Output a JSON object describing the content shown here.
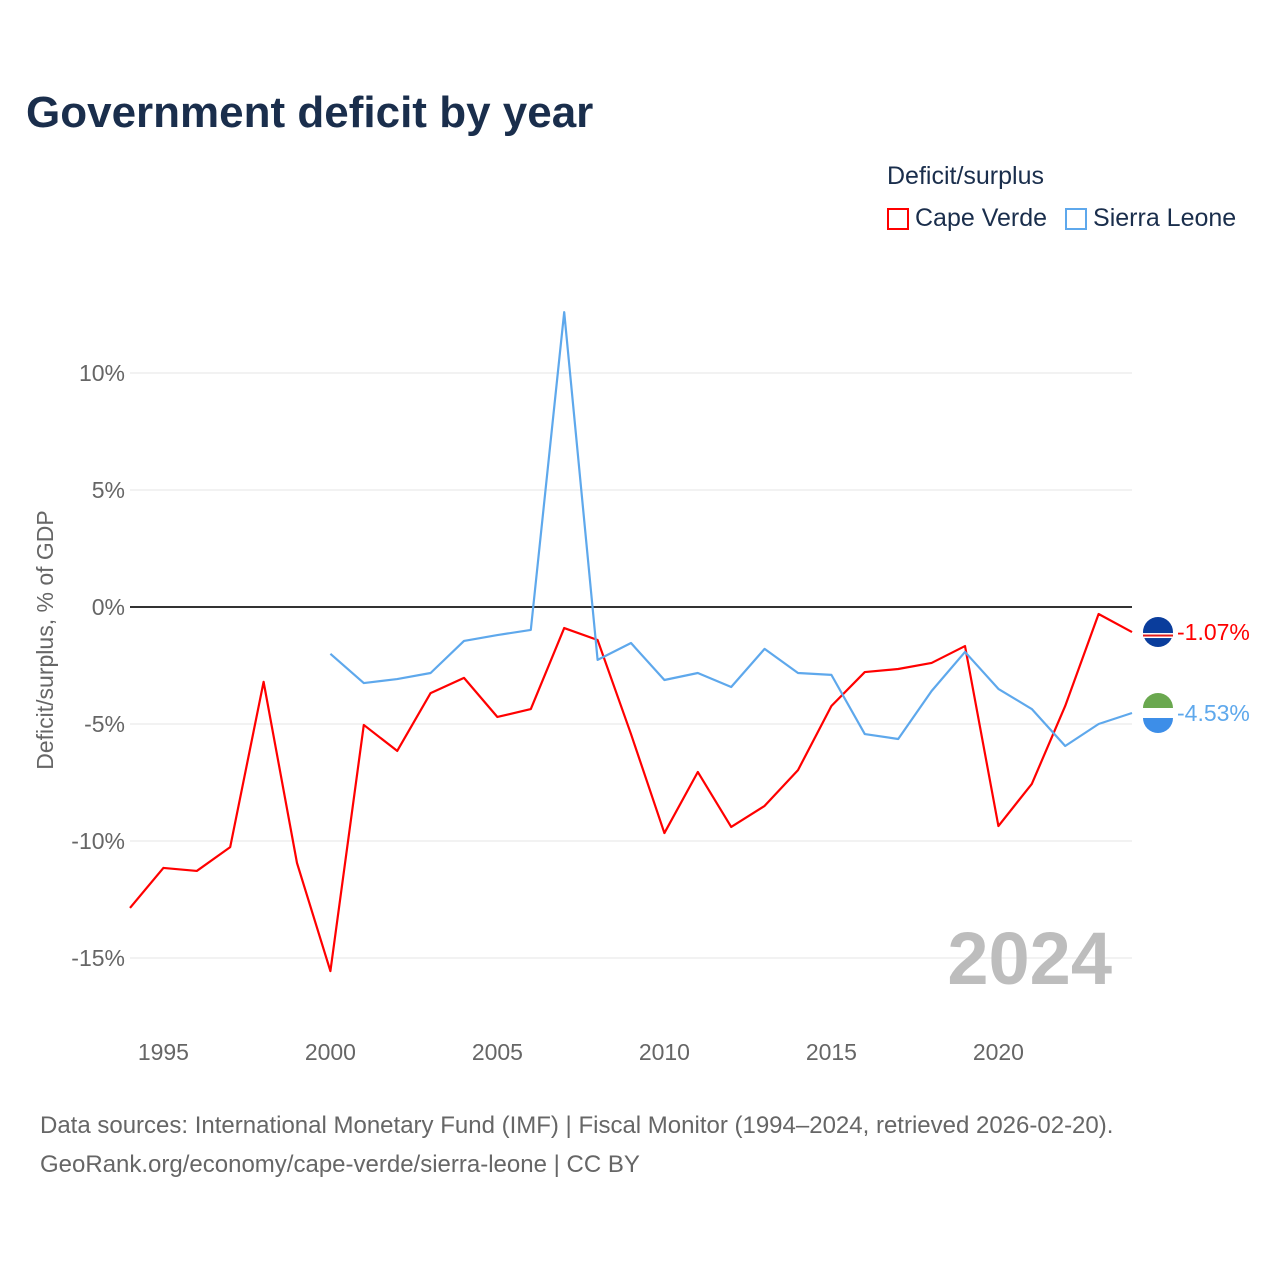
{
  "title": "Government deficit by year",
  "legend": {
    "title": "Deficit/surplus",
    "items": [
      {
        "label": "Cape Verde",
        "color": "#ff0000"
      },
      {
        "label": "Sierra Leone",
        "color": "#5ea8ec"
      }
    ]
  },
  "source_line1": "Data sources: International Monetary Fund (IMF) | Fiscal Monitor (1994–2024, retrieved 2026-02-20).",
  "source_line2": "GeoRank.org/economy/cape-verde/sierra-leone | CC BY",
  "chart_data": {
    "type": "line",
    "title": "Government deficit by year",
    "ylabel": "Deficit/surplus, % of GDP",
    "xlabel": "",
    "xlim": [
      1994,
      2024
    ],
    "ylim": [
      -17.5,
      14
    ],
    "yticks": [
      10,
      5,
      0,
      -5,
      -10,
      -15
    ],
    "ytick_labels": [
      "10%",
      "5%",
      "0%",
      "-5%",
      "-10%",
      "-15%"
    ],
    "xticks": [
      1995,
      2000,
      2005,
      2010,
      2015,
      2020
    ],
    "xtick_labels": [
      "1995",
      "2000",
      "2005",
      "2010",
      "2015",
      "2020"
    ],
    "year_watermark": "2024",
    "grid": true,
    "legend_position": "top-right",
    "series": [
      {
        "name": "Cape Verde",
        "color": "#ff0000",
        "end_label": "-1.07%",
        "icon": "cape-verde-flag-icon",
        "x": [
          1994,
          1995,
          1996,
          1997,
          1998,
          1999,
          2000,
          2001,
          2002,
          2003,
          2004,
          2005,
          2006,
          2007,
          2008,
          2009,
          2010,
          2011,
          2012,
          2013,
          2014,
          2015,
          2016,
          2017,
          2018,
          2019,
          2020,
          2021,
          2022,
          2023,
          2024
        ],
        "y": [
          -12.86,
          -11.15,
          -11.28,
          -10.26,
          -3.2,
          -10.94,
          -15.56,
          -5.04,
          -6.15,
          -3.68,
          -3.03,
          -4.7,
          -4.36,
          -0.9,
          -1.41,
          -5.43,
          -9.66,
          -7.05,
          -9.4,
          -8.5,
          -6.97,
          -4.23,
          -2.78,
          -2.65,
          -2.39,
          -1.67,
          -9.36,
          -7.56,
          -4.23,
          -0.3,
          -1.07
        ]
      },
      {
        "name": "Sierra Leone",
        "color": "#5ea8ec",
        "end_label": "-4.53%",
        "icon": "sierra-leone-flag-icon",
        "x": [
          2000,
          2001,
          2002,
          2003,
          2004,
          2005,
          2006,
          2007,
          2008,
          2009,
          2010,
          2011,
          2012,
          2013,
          2014,
          2015,
          2016,
          2017,
          2018,
          2019,
          2020,
          2021,
          2022,
          2023,
          2024
        ],
        "y": [
          -2.0,
          -3.25,
          -3.08,
          -2.82,
          -1.45,
          -1.2,
          -0.98,
          12.6,
          -2.26,
          -1.54,
          -3.12,
          -2.82,
          -3.42,
          -1.79,
          -2.82,
          -2.9,
          -5.43,
          -5.64,
          -3.59,
          -1.92,
          -3.5,
          -4.36,
          -5.94,
          -5.0,
          -4.53
        ]
      }
    ]
  }
}
